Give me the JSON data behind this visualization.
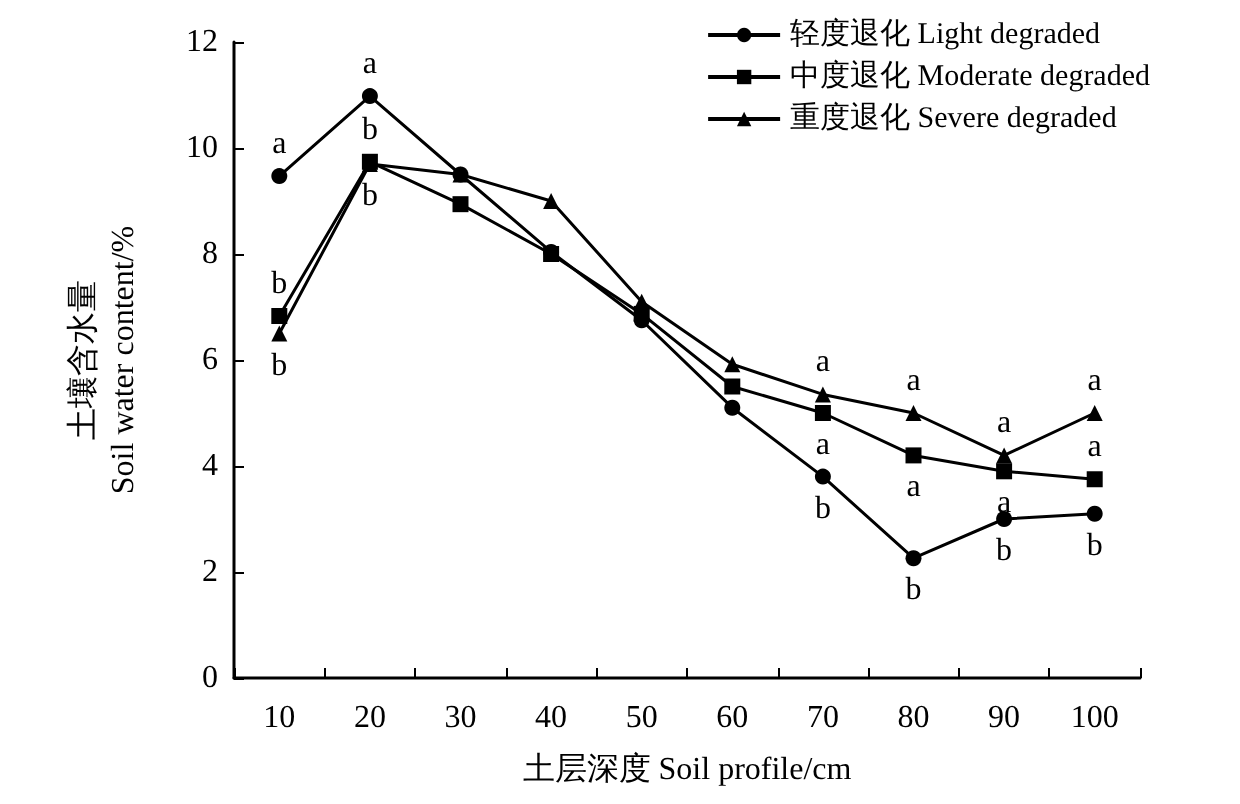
{
  "chart_data": {
    "type": "line",
    "xlabel": "土层深度 Soil profile/cm",
    "ylabel": "土壤含水量\nSoil water content/%",
    "categories": [
      "10",
      "20",
      "30",
      "40",
      "50",
      "60",
      "70",
      "80",
      "90",
      "100"
    ],
    "series": [
      {
        "name": "轻度退化 Light degraded",
        "color": "#000000",
        "marker": "circle",
        "values": [
          9.47,
          10.98,
          9.5,
          8.04,
          6.75,
          5.1,
          3.8,
          2.26,
          3.0,
          3.1
        ],
        "value_labels": [
          "a",
          "a",
          null,
          null,
          null,
          null,
          "b",
          "b",
          "b",
          "b"
        ]
      },
      {
        "name": "中度退化 Moderate degraded",
        "color": "#000000",
        "marker": "square",
        "values": [
          6.83,
          9.74,
          8.94,
          8.0,
          6.87,
          5.5,
          5.0,
          4.2,
          3.9,
          3.75
        ],
        "value_labels": [
          "b",
          "b",
          null,
          null,
          null,
          null,
          "a",
          "a",
          "a",
          "a"
        ]
      },
      {
        "name": "重度退化 Severe degraded",
        "color": "#000000",
        "marker": "triangle",
        "values": [
          6.5,
          9.7,
          9.5,
          9.0,
          7.1,
          5.92,
          5.35,
          5.0,
          4.2,
          5.0
        ],
        "value_labels": [
          "b",
          "b",
          null,
          null,
          null,
          null,
          "a",
          "a",
          "a",
          "a"
        ]
      }
    ],
    "ylim": [
      0,
      12
    ],
    "yticks": [
      0,
      2,
      4,
      6,
      8,
      10,
      12
    ],
    "grid": false,
    "legend": "top right",
    "line_style": "solid"
  }
}
